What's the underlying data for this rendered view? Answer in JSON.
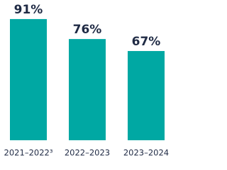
{
  "chart_data": {
    "type": "bar",
    "categories": [
      "2021–2022³",
      "2022–2023",
      "2023–2024"
    ],
    "values": [
      91,
      76,
      67
    ],
    "value_labels": [
      "91%",
      "76%",
      "67%"
    ],
    "color": "#00a8a3"
  }
}
